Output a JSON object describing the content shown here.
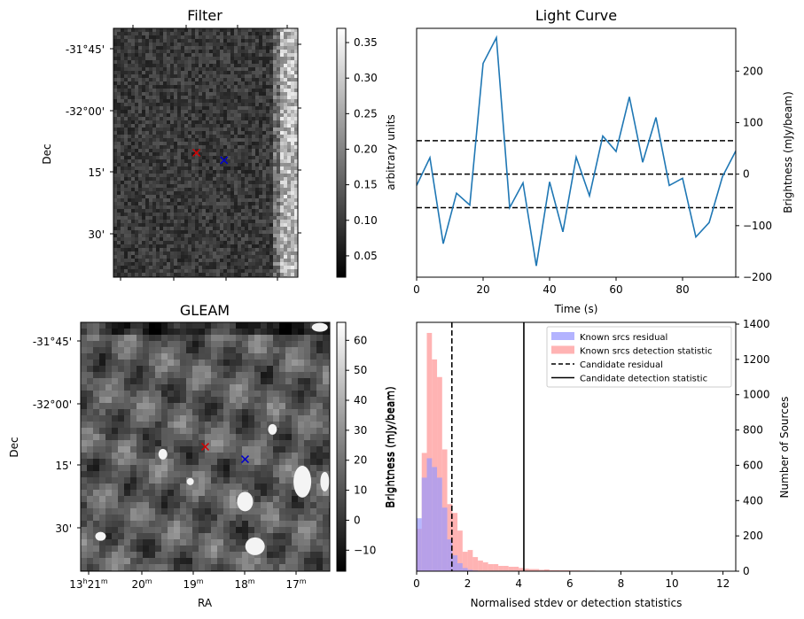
{
  "figure": {
    "filter": {
      "title": "Filter",
      "ylabel": "Dec",
      "yticks": [
        "-31°45'",
        "-32°00'",
        "15'",
        "30'"
      ],
      "colorbar": {
        "label": "arbitrary units",
        "ticks": [
          "0.35",
          "0.30",
          "0.25",
          "0.20",
          "0.15",
          "0.10",
          "0.05"
        ],
        "range": [
          0.02,
          0.37
        ],
        "colormap": "gray"
      },
      "markers": [
        {
          "name": "red-cross",
          "symbol": "x",
          "color": "#d40000",
          "fx": 0.45,
          "fy": 0.5
        },
        {
          "name": "blue-cross",
          "symbol": "x",
          "color": "#0000cc",
          "fx": 0.6,
          "fy": 0.53
        }
      ]
    },
    "gleam": {
      "title": "GLEAM",
      "xlabel": "RA",
      "ylabel": "Dec",
      "yticks": [
        "-31°45'",
        "-32°00'",
        "15'",
        "30'"
      ],
      "xticks": [
        {
          "h": "13",
          "m": "21",
          "s": ""
        },
        {
          "h": "",
          "m": "20",
          "s": ""
        },
        {
          "h": "",
          "m": "19",
          "s": ""
        },
        {
          "h": "",
          "m": "18",
          "s": ""
        },
        {
          "h": "",
          "m": "17",
          "s": ""
        }
      ],
      "colorbar": {
        "label": "Brightness (mJy/beam)",
        "ticks": [
          "60",
          "50",
          "40",
          "30",
          "20",
          "10",
          "0",
          "−10"
        ],
        "range": [
          -17,
          66
        ],
        "colormap": "gray"
      },
      "markers": [
        {
          "name": "red-cross",
          "symbol": "x",
          "color": "#d40000",
          "fx": 0.5,
          "fy": 0.5
        },
        {
          "name": "blue-cross",
          "symbol": "x",
          "color": "#0000cc",
          "fx": 0.66,
          "fy": 0.55
        }
      ]
    }
  },
  "chart_data": [
    {
      "type": "line",
      "title": "Light Curve",
      "xlabel": "Time (s)",
      "ylabel": "Brightness (mJy/beam)",
      "xlim": [
        0,
        96
      ],
      "ylim": [
        -200,
        283
      ],
      "xticks": [
        0,
        20,
        40,
        60,
        80
      ],
      "yticks": [
        -200,
        -100,
        0,
        100,
        200
      ],
      "yaxis_side": "right",
      "color": "#1f77b4",
      "x": [
        0,
        4,
        8,
        12,
        16,
        20,
        24,
        28,
        32,
        36,
        40,
        44,
        48,
        52,
        56,
        60,
        64,
        68,
        72,
        76,
        80,
        84,
        88,
        92,
        96
      ],
      "y": [
        -22,
        32,
        -135,
        -37,
        -60,
        215,
        265,
        -65,
        -17,
        -178,
        -15,
        -112,
        33,
        -42,
        74,
        44,
        150,
        23,
        110,
        -22,
        -8,
        -122,
        -94,
        -5,
        45
      ],
      "hlines": [
        {
          "y": 65,
          "style": "dashed",
          "color": "#000000"
        },
        {
          "y": 0,
          "style": "dashed",
          "color": "#000000"
        },
        {
          "y": -65,
          "style": "dashed",
          "color": "#000000"
        }
      ]
    },
    {
      "type": "histogram",
      "xlabel": "Normalised stdev or detection statistics",
      "ylabel_left": "Brightness (mJy/beam)",
      "ylabel_right": "Number of Sources",
      "xlim": [
        0,
        12.5
      ],
      "ylim": [
        0,
        1410
      ],
      "xticks": [
        0,
        2,
        4,
        6,
        8,
        10,
        12
      ],
      "yticks": [
        0,
        200,
        400,
        600,
        800,
        1000,
        1200,
        1400
      ],
      "bin_width": 0.2,
      "series": [
        {
          "name": "Known srcs detection statistic",
          "color": "#ff9999",
          "values": [
            240,
            670,
            1350,
            1200,
            1100,
            690,
            380,
            330,
            230,
            110,
            120,
            80,
            60,
            50,
            40,
            40,
            30,
            30,
            25,
            25,
            18,
            14,
            12,
            12,
            8,
            10,
            6,
            6,
            5,
            5,
            4,
            4,
            3,
            3,
            3,
            2,
            2,
            2,
            2,
            2,
            2,
            2,
            1,
            1,
            1,
            1,
            1,
            1,
            1,
            1,
            1,
            1,
            1,
            1,
            1,
            1,
            1,
            1,
            1,
            1,
            1
          ]
        },
        {
          "name": "Known srcs residual",
          "color": "#9999ff",
          "values": [
            300,
            530,
            640,
            590,
            530,
            360,
            180,
            90,
            45,
            18,
            8,
            4,
            2
          ]
        }
      ],
      "vlines": [
        {
          "name": "Candidate residual",
          "x": 1.38,
          "style": "dashed",
          "color": "#000000"
        },
        {
          "name": "Candidate detection statistic",
          "x": 4.2,
          "style": "solid",
          "color": "#000000"
        }
      ],
      "legend": {
        "placement": "top-right",
        "entries": [
          {
            "label": "Known srcs residual",
            "kind": "patch",
            "color": "#b3b3ff"
          },
          {
            "label": "Known srcs detection statistic",
            "kind": "patch",
            "color": "#ffb3b3"
          },
          {
            "label": "Candidate residual",
            "kind": "dashed",
            "color": "#000000"
          },
          {
            "label": "Candidate detection statistic",
            "kind": "solid",
            "color": "#000000"
          }
        ]
      }
    }
  ]
}
